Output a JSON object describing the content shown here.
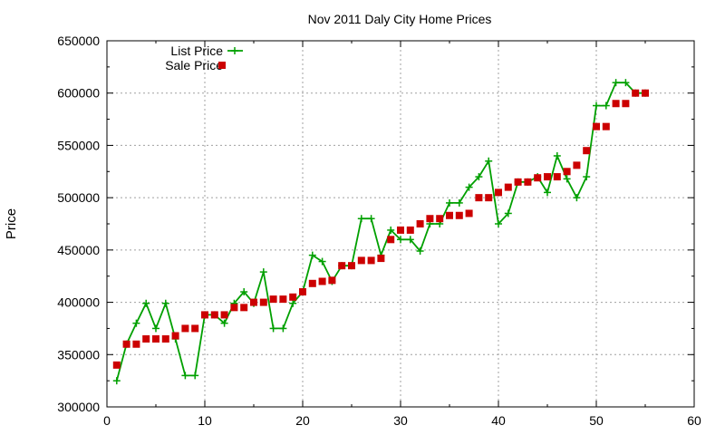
{
  "chart_data": {
    "type": "line",
    "title": "Nov 2011 Daly City Home Prices",
    "xlabel": "",
    "ylabel": "Price",
    "xlim": [
      0,
      60
    ],
    "ylim": [
      300000,
      650000
    ],
    "xticks": [
      0,
      10,
      20,
      30,
      40,
      50,
      60
    ],
    "yticks": [
      300000,
      350000,
      400000,
      450000,
      500000,
      550000,
      600000,
      650000
    ],
    "grid": true,
    "legend": "top-left",
    "series": [
      {
        "name": "List Price",
        "kind": "line-plus",
        "color": "#00a000",
        "x": [
          1,
          2,
          3,
          4,
          5,
          6,
          7,
          8,
          9,
          10,
          11,
          12,
          13,
          14,
          15,
          16,
          17,
          18,
          19,
          20,
          21,
          22,
          23,
          24,
          25,
          26,
          27,
          28,
          29,
          30,
          31,
          32,
          33,
          34,
          35,
          36,
          37,
          38,
          39,
          40,
          41,
          42,
          43,
          44,
          45,
          46,
          47,
          48,
          49,
          50,
          51,
          52,
          53,
          54,
          55
        ],
        "y": [
          325000,
          360000,
          380000,
          399000,
          375000,
          399000,
          365000,
          330000,
          330000,
          388000,
          388000,
          380000,
          399000,
          410000,
          399000,
          429000,
          375000,
          375000,
          399000,
          410000,
          445000,
          439000,
          420000,
          435000,
          435000,
          480000,
          480000,
          445000,
          469000,
          460000,
          460000,
          449000,
          475000,
          475000,
          495000,
          495000,
          510000,
          520000,
          535000,
          475000,
          485000,
          515000,
          515000,
          520000,
          505000,
          540000,
          518000,
          500000,
          520000,
          588000,
          588000,
          610000,
          610000,
          600000,
          600000
        ]
      },
      {
        "name": "Sale Price",
        "kind": "square",
        "color": "#cc0000",
        "x": [
          1,
          2,
          3,
          4,
          5,
          6,
          7,
          8,
          9,
          10,
          11,
          12,
          13,
          14,
          15,
          16,
          17,
          18,
          19,
          20,
          21,
          22,
          23,
          24,
          25,
          26,
          27,
          28,
          29,
          30,
          31,
          32,
          33,
          34,
          35,
          36,
          37,
          38,
          39,
          40,
          41,
          42,
          43,
          44,
          45,
          46,
          47,
          48,
          49,
          50,
          51,
          52,
          53,
          54,
          55
        ],
        "y": [
          340000,
          360000,
          360000,
          365000,
          365000,
          365000,
          368000,
          375000,
          375000,
          388000,
          388000,
          388000,
          395000,
          395000,
          400000,
          400000,
          403000,
          403000,
          405000,
          410000,
          418000,
          420000,
          421000,
          435000,
          435000,
          440000,
          440000,
          442000,
          460000,
          469000,
          469000,
          475000,
          480000,
          480000,
          483000,
          483000,
          485000,
          500000,
          500000,
          505000,
          510000,
          515000,
          515000,
          519000,
          520000,
          520000,
          525000,
          531000,
          545000,
          568000,
          568000,
          590000,
          590000,
          600000,
          600000
        ]
      }
    ]
  }
}
